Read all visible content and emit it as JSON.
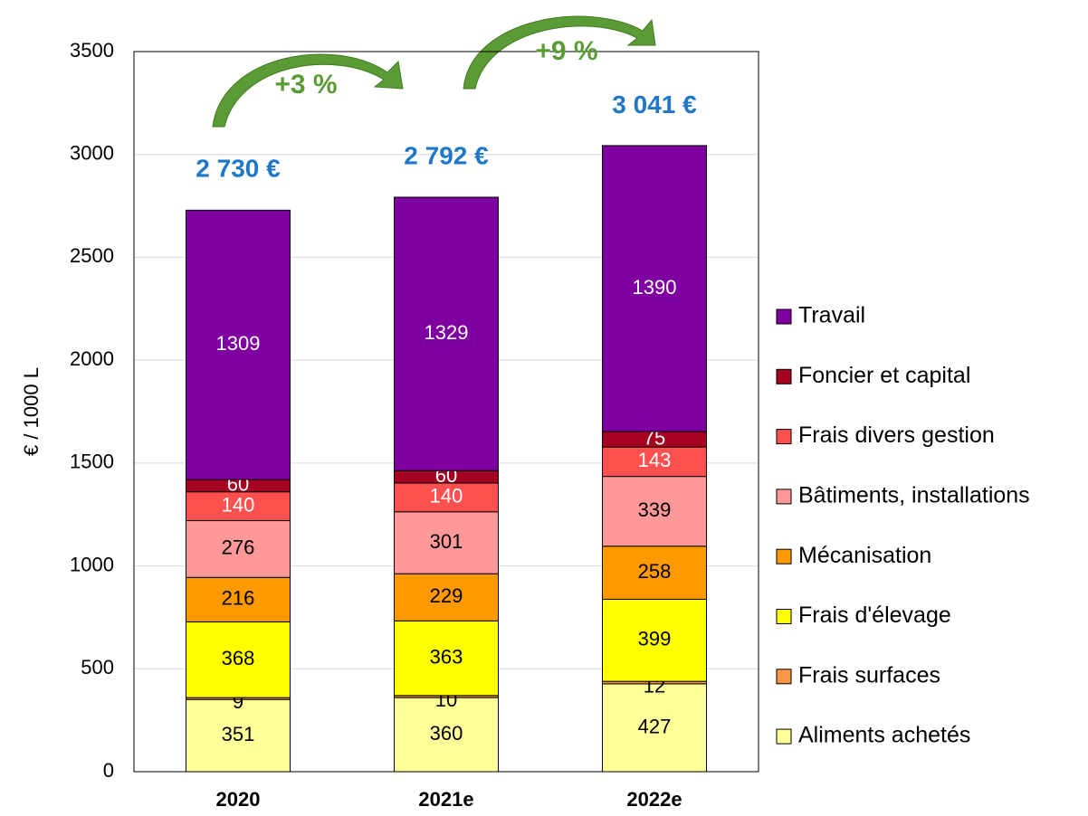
{
  "chart_data": {
    "type": "stacked_bar",
    "y_label": "€ / 1000 L",
    "categories": [
      "2020",
      "2021e",
      "2022e"
    ],
    "ylim": [
      0,
      3500
    ],
    "yticks": [
      0,
      500,
      1000,
      1500,
      2000,
      2500,
      3000,
      3500
    ],
    "grid": true,
    "legend": "right",
    "series": [
      {
        "name": "Aliments achetés",
        "color": "#ffff99",
        "label_color": "#000000",
        "values": [
          351,
          360,
          427
        ]
      },
      {
        "name": "Frais surfaces",
        "color": "#f79646",
        "label_color": "#000000",
        "values": [
          9,
          10,
          12
        ]
      },
      {
        "name": "Frais d'élevage",
        "color": "#ffff00",
        "label_color": "#000000",
        "values": [
          368,
          363,
          399
        ]
      },
      {
        "name": "Mécanisation",
        "color": "#ff9900",
        "label_color": "#000000",
        "values": [
          216,
          229,
          258
        ]
      },
      {
        "name": "Bâtiments, installations",
        "color": "#ff9999",
        "label_color": "#000000",
        "values": [
          276,
          301,
          339
        ]
      },
      {
        "name": "Frais divers gestion",
        "color": "#ff5050",
        "label_color": "#ffffff",
        "values": [
          140,
          140,
          143
        ]
      },
      {
        "name": "Foncier et capital",
        "color": "#a50021",
        "label_color": "#ffffff",
        "values": [
          60,
          60,
          75
        ]
      },
      {
        "name": "Travail",
        "color": "#7f00a0",
        "label_color": "#ffffff",
        "values": [
          1309,
          1329,
          1390
        ]
      }
    ],
    "totals": {
      "color": "#1f77c8",
      "values": [
        2730,
        2792,
        3041
      ],
      "value_labels": [
        "2 730 €",
        "2 792 €",
        "3 041 €"
      ]
    },
    "annotations": [
      {
        "text": "+3 %",
        "color": "#5b9b35"
      },
      {
        "text": "+9 %",
        "color": "#5b9b35"
      }
    ]
  }
}
